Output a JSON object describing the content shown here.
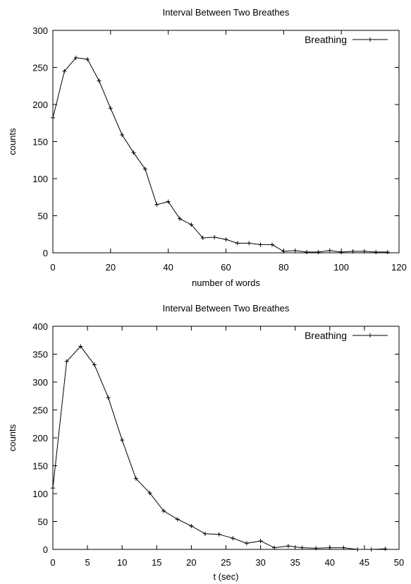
{
  "chart_data": [
    {
      "type": "line",
      "title": "Interval Between Two Breathes",
      "xlabel": "number of words",
      "ylabel": "counts",
      "xlim": [
        0,
        120
      ],
      "ylim": [
        0,
        300
      ],
      "xticks": [
        0,
        20,
        40,
        60,
        80,
        100,
        120
      ],
      "yticks": [
        0,
        50,
        100,
        150,
        200,
        250,
        300
      ],
      "grid": false,
      "legend_position": "top-right",
      "series": [
        {
          "name": "Breathing",
          "marker": "+",
          "x": [
            0,
            4,
            8,
            12,
            16,
            20,
            24,
            28,
            32,
            36,
            40,
            44,
            48,
            52,
            56,
            60,
            64,
            68,
            72,
            76,
            80,
            84,
            88,
            92,
            96,
            100,
            104,
            108,
            112,
            116
          ],
          "y": [
            182,
            245,
            263,
            261,
            232,
            195,
            159,
            135,
            113,
            65,
            69,
            46,
            38,
            20,
            21,
            18,
            13,
            13,
            11,
            11,
            2,
            3,
            1,
            1,
            3,
            1,
            2,
            2,
            1,
            1
          ]
        }
      ]
    },
    {
      "type": "line",
      "title": "Interval Between Two Breathes",
      "xlabel": "t (sec)",
      "ylabel": "counts",
      "xlim": [
        0,
        50
      ],
      "ylim": [
        0,
        400
      ],
      "xticks": [
        0,
        5,
        10,
        15,
        20,
        25,
        30,
        35,
        40,
        45,
        50
      ],
      "yticks": [
        0,
        50,
        100,
        150,
        200,
        250,
        300,
        350,
        400
      ],
      "grid": false,
      "legend_position": "top-right",
      "series": [
        {
          "name": "Breathing",
          "marker": "+",
          "x": [
            0,
            2,
            4,
            6,
            8,
            10,
            12,
            14,
            16,
            18,
            20,
            22,
            24,
            26,
            28,
            30,
            32,
            34,
            36,
            38,
            40,
            42,
            44,
            46,
            48
          ],
          "y": [
            110,
            337,
            364,
            331,
            272,
            196,
            127,
            101,
            69,
            54,
            42,
            28,
            27,
            20,
            11,
            15,
            3,
            6,
            3,
            2,
            3,
            3,
            0,
            0,
            1
          ]
        }
      ]
    }
  ]
}
